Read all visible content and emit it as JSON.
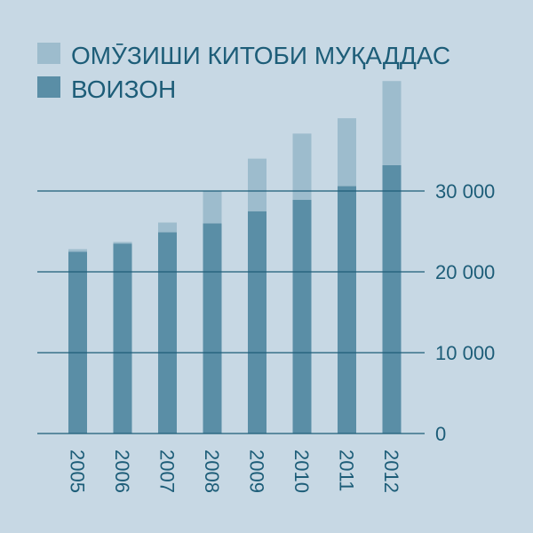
{
  "chart_data": {
    "type": "bar",
    "stacked": true,
    "categories": [
      "2005",
      "2006",
      "2007",
      "2008",
      "2009",
      "2010",
      "2011",
      "2012"
    ],
    "series": [
      {
        "name": "ВОИЗОН",
        "values": [
          22500,
          23500,
          24900,
          26000,
          27500,
          28900,
          30600,
          33200
        ],
        "color": "#5a8ea6"
      },
      {
        "name": "ОМӮЗИШИ КИТОБИ МУҚАДДАС",
        "values": [
          300,
          200,
          1200,
          4000,
          6500,
          8200,
          8400,
          10400
        ],
        "color": "#9dbccd"
      }
    ],
    "yticks": [
      0,
      10000,
      20000,
      30000
    ],
    "ytick_labels": [
      "0",
      "10 000",
      "20 000",
      "30 000"
    ],
    "ylim": [
      0,
      44000
    ],
    "legend_position": "top-left",
    "grid": true
  },
  "colors": {
    "background": "#c7d8e4",
    "grid": "#1d5d78",
    "text": "#1d5d78"
  }
}
